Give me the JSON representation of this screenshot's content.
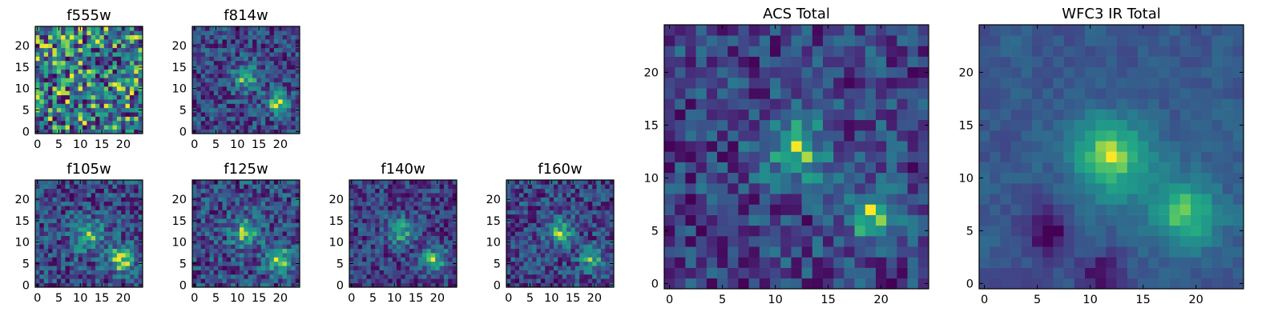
{
  "chart_data": [
    {
      "type": "heatmap",
      "title": "f555w",
      "colormap": "viridis",
      "grid": false,
      "x_ticks": [
        "0",
        "5",
        "10",
        "15",
        "20"
      ],
      "y_ticks": [
        "0",
        "5",
        "10",
        "15",
        "20"
      ],
      "xlim": [
        -0.5,
        24.5
      ],
      "ylim": [
        -0.5,
        24.5
      ],
      "shape": [
        25,
        25
      ],
      "peaks": [],
      "noise": 0.6,
      "background": 0.55,
      "seed": 11
    },
    {
      "type": "heatmap",
      "title": "f814w",
      "colormap": "viridis",
      "grid": false,
      "x_ticks": [
        "0",
        "5",
        "10",
        "15",
        "20"
      ],
      "y_ticks": [
        "0",
        "5",
        "10",
        "15",
        "20"
      ],
      "xlim": [
        -0.5,
        24.5
      ],
      "ylim": [
        -0.5,
        24.5
      ],
      "shape": [
        25,
        25
      ],
      "peaks": [
        {
          "x": 12,
          "y": 12.5,
          "amp": 0.45,
          "sigma": 2.2
        },
        {
          "x": 19.5,
          "y": 6.5,
          "amp": 0.6,
          "sigma": 1.8
        }
      ],
      "noise": 0.5,
      "background": 0.35,
      "seed": 23
    },
    {
      "type": "heatmap",
      "title": "f105w",
      "colormap": "viridis",
      "grid": false,
      "x_ticks": [
        "0",
        "5",
        "10",
        "15",
        "20"
      ],
      "y_ticks": [
        "0",
        "5",
        "10",
        "15",
        "20"
      ],
      "xlim": [
        -0.5,
        24.5
      ],
      "ylim": [
        -0.5,
        24.5
      ],
      "shape": [
        25,
        25
      ],
      "peaks": [
        {
          "x": 12,
          "y": 11.5,
          "amp": 0.35,
          "sigma": 2.6
        },
        {
          "x": 19.5,
          "y": 6,
          "amp": 0.55,
          "sigma": 2.0
        }
      ],
      "noise": 0.45,
      "background": 0.4,
      "seed": 37
    },
    {
      "type": "heatmap",
      "title": "f125w",
      "colormap": "viridis",
      "grid": false,
      "x_ticks": [
        "0",
        "5",
        "10",
        "15",
        "20"
      ],
      "y_ticks": [
        "0",
        "5",
        "10",
        "15",
        "20"
      ],
      "xlim": [
        -0.5,
        24.5
      ],
      "ylim": [
        -0.5,
        24.5
      ],
      "shape": [
        25,
        25
      ],
      "peaks": [
        {
          "x": 12,
          "y": 12.5,
          "amp": 0.4,
          "sigma": 2.4
        },
        {
          "x": 19.5,
          "y": 6,
          "amp": 0.5,
          "sigma": 2.0
        }
      ],
      "noise": 0.45,
      "background": 0.42,
      "seed": 41
    },
    {
      "type": "heatmap",
      "title": "f140w",
      "colormap": "viridis",
      "grid": false,
      "x_ticks": [
        "0",
        "5",
        "10",
        "15",
        "20"
      ],
      "y_ticks": [
        "0",
        "5",
        "10",
        "15",
        "20"
      ],
      "xlim": [
        -0.5,
        24.5
      ],
      "ylim": [
        -0.5,
        24.5
      ],
      "shape": [
        25,
        25
      ],
      "peaks": [
        {
          "x": 11.5,
          "y": 12.5,
          "amp": 0.45,
          "sigma": 2.2
        },
        {
          "x": 19.5,
          "y": 6,
          "amp": 0.5,
          "sigma": 2.0
        }
      ],
      "noise": 0.45,
      "background": 0.42,
      "seed": 53
    },
    {
      "type": "heatmap",
      "title": "f160w",
      "colormap": "viridis",
      "grid": false,
      "x_ticks": [
        "0",
        "5",
        "10",
        "15",
        "20"
      ],
      "y_ticks": [
        "0",
        "5",
        "10",
        "15",
        "20"
      ],
      "xlim": [
        -0.5,
        24.5
      ],
      "ylim": [
        -0.5,
        24.5
      ],
      "shape": [
        25,
        25
      ],
      "peaks": [
        {
          "x": 12,
          "y": 12.5,
          "amp": 0.45,
          "sigma": 2.2
        },
        {
          "x": 19.5,
          "y": 6,
          "amp": 0.45,
          "sigma": 1.8
        }
      ],
      "noise": 0.45,
      "background": 0.4,
      "seed": 67
    },
    {
      "type": "heatmap",
      "title": "ACS Total",
      "colormap": "viridis",
      "grid": false,
      "x_ticks": [
        "0",
        "5",
        "10",
        "15",
        "20"
      ],
      "y_ticks": [
        "0",
        "5",
        "10",
        "15",
        "20"
      ],
      "xlim": [
        -0.5,
        24.5
      ],
      "ylim": [
        -0.5,
        24.5
      ],
      "shape": [
        25,
        25
      ],
      "peaks": [
        {
          "x": 12,
          "y": 12.5,
          "amp": 0.45,
          "sigma": 2.3
        },
        {
          "x": 19,
          "y": 6.5,
          "amp": 0.55,
          "sigma": 1.7
        }
      ],
      "noise": 0.45,
      "background": 0.42,
      "seed": 79
    },
    {
      "type": "heatmap",
      "title": "WFC3 IR Total",
      "colormap": "viridis",
      "grid": false,
      "x_ticks": [
        "0",
        "5",
        "10",
        "15",
        "20"
      ],
      "y_ticks": [
        "0",
        "5",
        "10",
        "15",
        "20"
      ],
      "xlim": [
        -0.5,
        24.5
      ],
      "ylim": [
        -0.5,
        24.5
      ],
      "shape": [
        25,
        25
      ],
      "peaks": [
        {
          "x": 12,
          "y": 12,
          "amp": 0.5,
          "sigma": 2.5
        },
        {
          "x": 19,
          "y": 6.5,
          "amp": 0.45,
          "sigma": 2.2
        }
      ],
      "noise": 0.22,
      "background": 0.45,
      "smooth": true,
      "dark_patches": [
        {
          "x": 6,
          "y": 5,
          "amp": 0.35,
          "sigma": 1.5
        },
        {
          "x": 11,
          "y": 1,
          "amp": 0.3,
          "sigma": 1.2
        }
      ],
      "seed": 97
    }
  ]
}
